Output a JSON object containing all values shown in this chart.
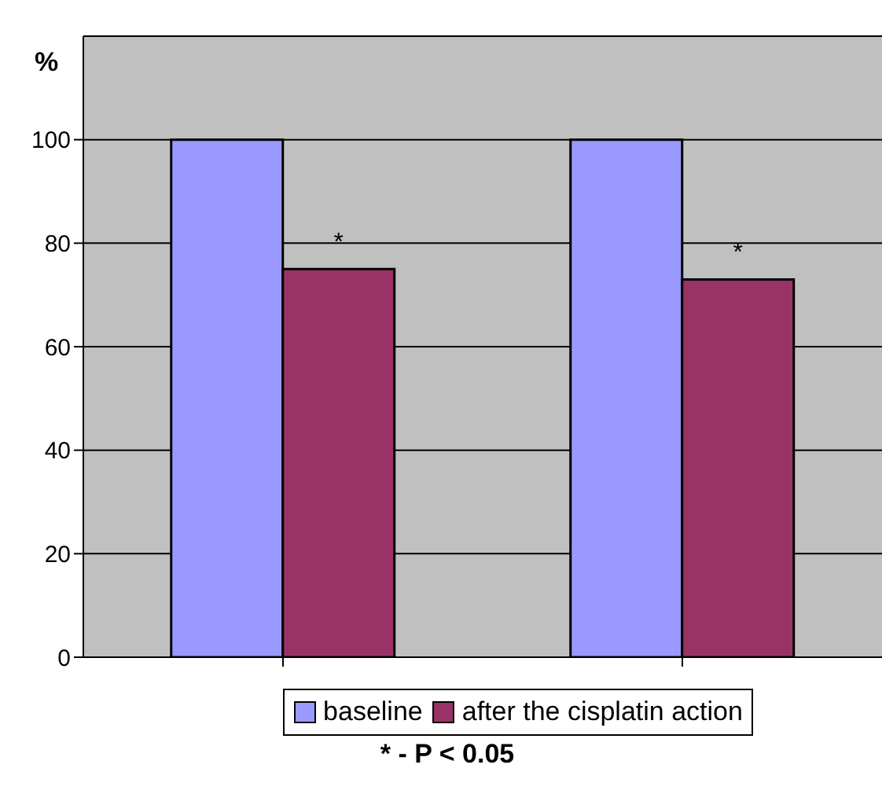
{
  "chart_data": {
    "type": "bar",
    "ylabel": "%",
    "categories": [
      null,
      null
    ],
    "series": [
      {
        "name": "baseline",
        "color": "#9999ff",
        "values": [
          100,
          100
        ]
      },
      {
        "name": "after the cisplatin action",
        "color": "#993366",
        "values": [
          75,
          73
        ]
      }
    ],
    "ylim": [
      0,
      120
    ],
    "yticks": [
      0,
      20,
      40,
      60,
      80,
      100
    ],
    "grid": "y",
    "legend": "bottom",
    "annotations": [
      "*",
      "*",
      "* - P < 0.05"
    ]
  }
}
